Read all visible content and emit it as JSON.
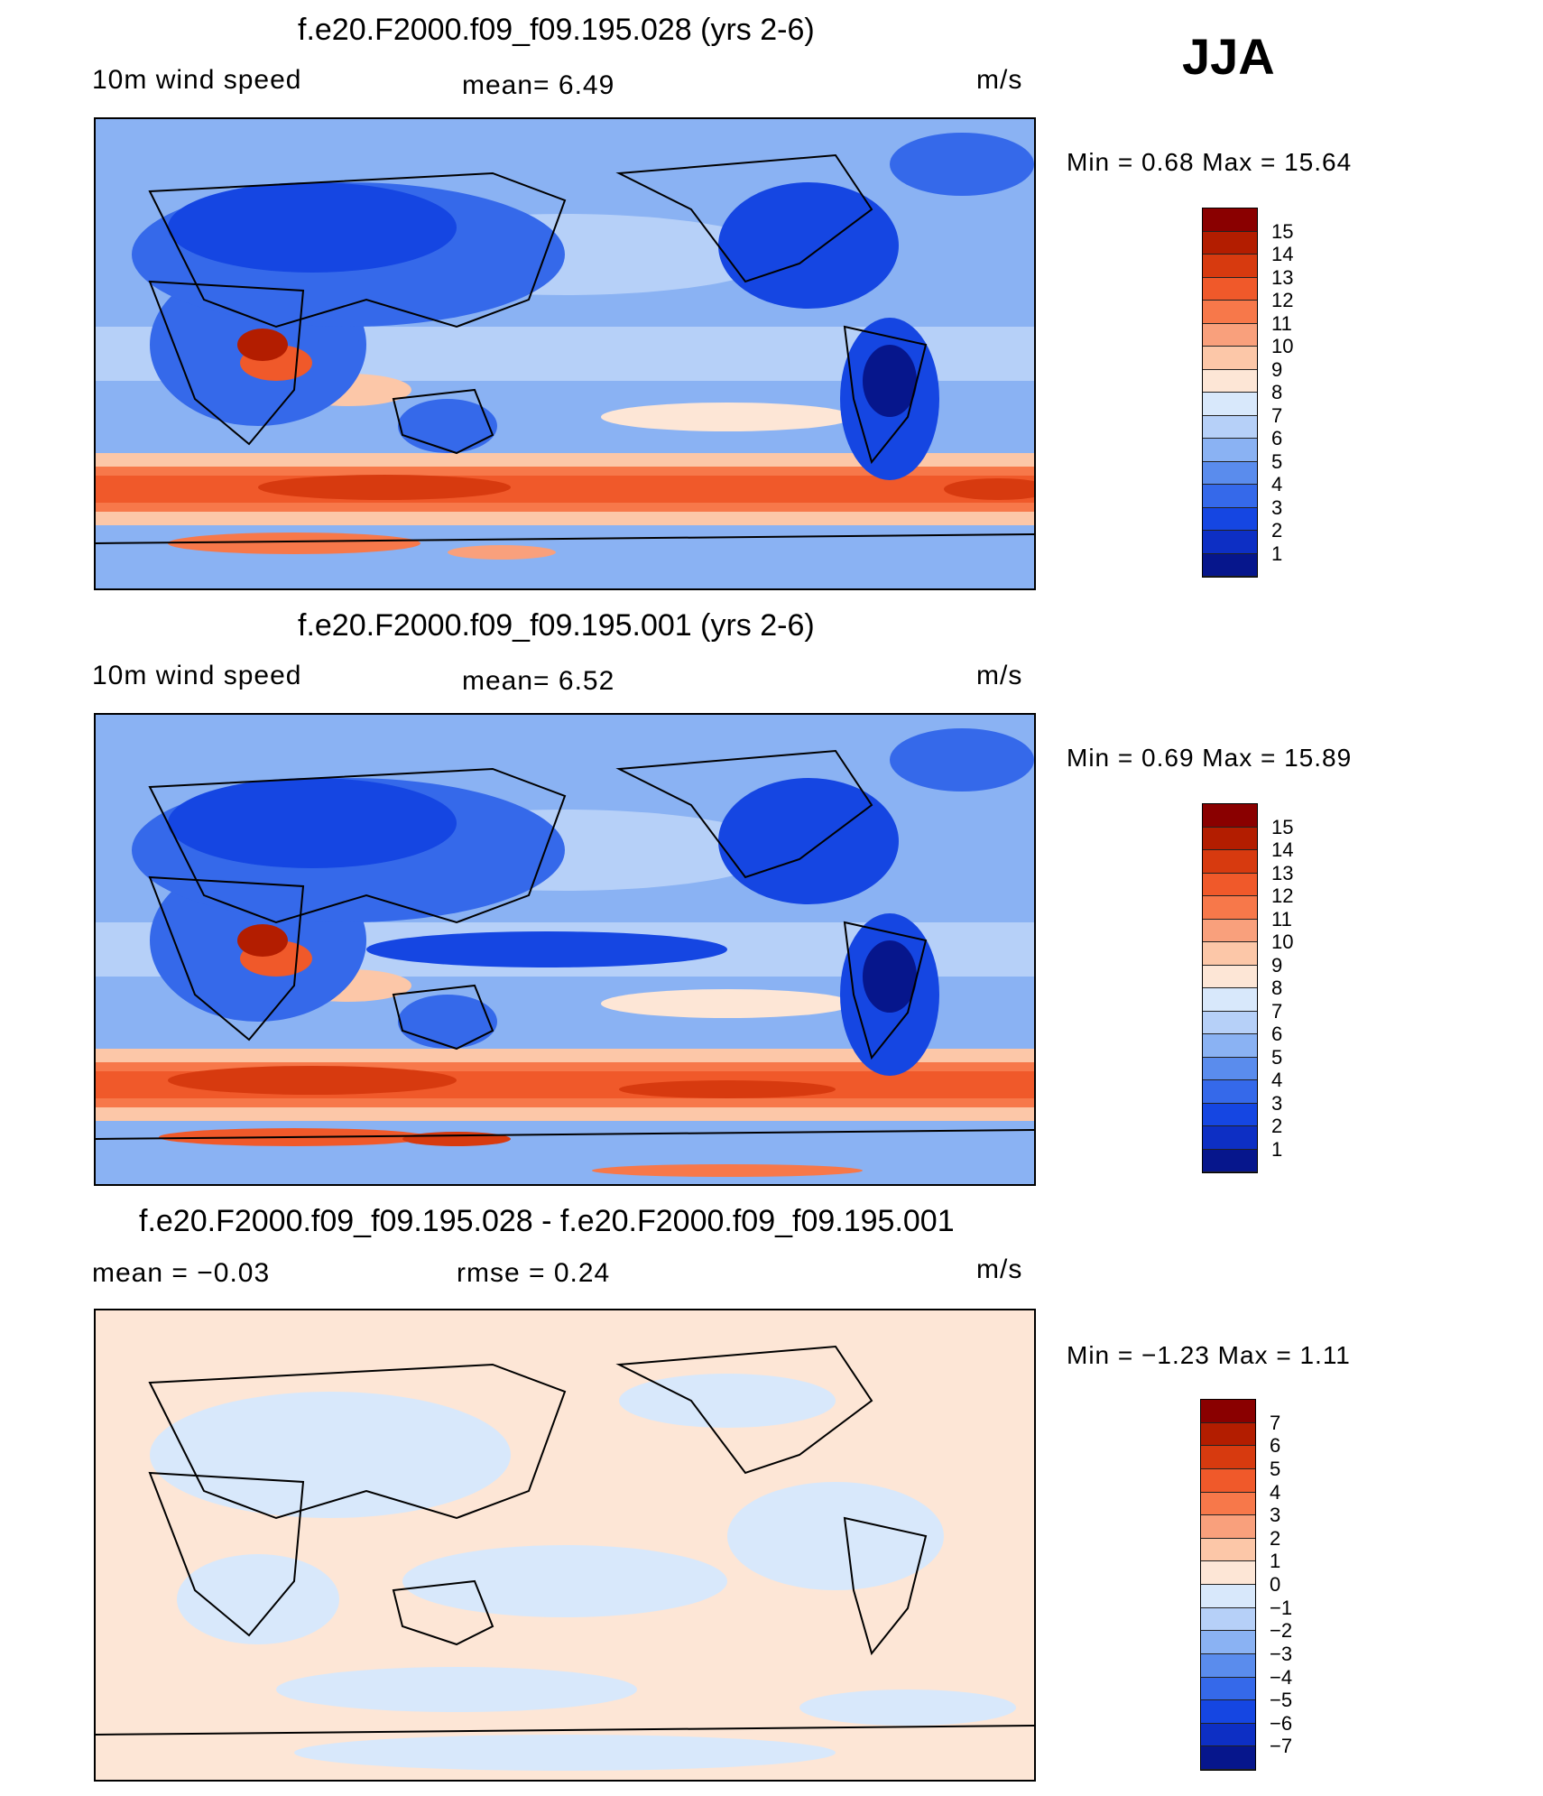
{
  "season": "JJA",
  "panels": [
    {
      "title": "f.e20.F2000.f09_f09.195.028 (yrs 2-6)",
      "left_label": "10m  wind  speed",
      "center_label": "mean=    6.49",
      "units": "m/s",
      "minmax": "Min  =     0.68  Max  =    15.64",
      "kind": "abs"
    },
    {
      "title": "f.e20.F2000.f09_f09.195.001 (yrs 2-6)",
      "left_label": "10m  wind  speed",
      "center_label": "mean=    6.52",
      "units": "m/s",
      "minmax": "Min  =     0.69  Max  =    15.89",
      "kind": "abs"
    },
    {
      "title": "f.e20.F2000.f09_f09.195.028 - f.e20.F2000.f09_f09.195.001",
      "left_label": "mean  =    −0.03",
      "center_label": "rmse  =     0.24",
      "units": "m/s",
      "minmax": "Min  =    −1.23  Max  =     1.11",
      "kind": "diff"
    }
  ],
  "colorbar_abs": {
    "labels": [
      "15",
      "14",
      "13",
      "12",
      "11",
      "10",
      "9",
      "8",
      "7",
      "6",
      "5",
      "4",
      "3",
      "2",
      "1"
    ],
    "colors": [
      "#8a0000",
      "#b31d00",
      "#d73a0f",
      "#f0592a",
      "#f7784a",
      "#f9a07c",
      "#fcc7a8",
      "#fde6d6",
      "#d8e8fb",
      "#b6d0f8",
      "#8ab2f3",
      "#5a8ced",
      "#3569ea",
      "#1546e2",
      "#0d2fc4",
      "#06168c"
    ]
  },
  "colorbar_diff": {
    "labels": [
      "7",
      "6",
      "5",
      "4",
      "3",
      "2",
      "1",
      "0",
      "−1",
      "−2",
      "−3",
      "−4",
      "−5",
      "−6",
      "−7"
    ],
    "colors": [
      "#8a0000",
      "#b31d00",
      "#d73a0f",
      "#f0592a",
      "#f7784a",
      "#f9a07c",
      "#fcc7a8",
      "#fde6d6",
      "#d8e8fb",
      "#b6d0f8",
      "#8ab2f3",
      "#5a8ced",
      "#3569ea",
      "#1546e2",
      "#0d2fc4",
      "#06168c"
    ]
  }
}
